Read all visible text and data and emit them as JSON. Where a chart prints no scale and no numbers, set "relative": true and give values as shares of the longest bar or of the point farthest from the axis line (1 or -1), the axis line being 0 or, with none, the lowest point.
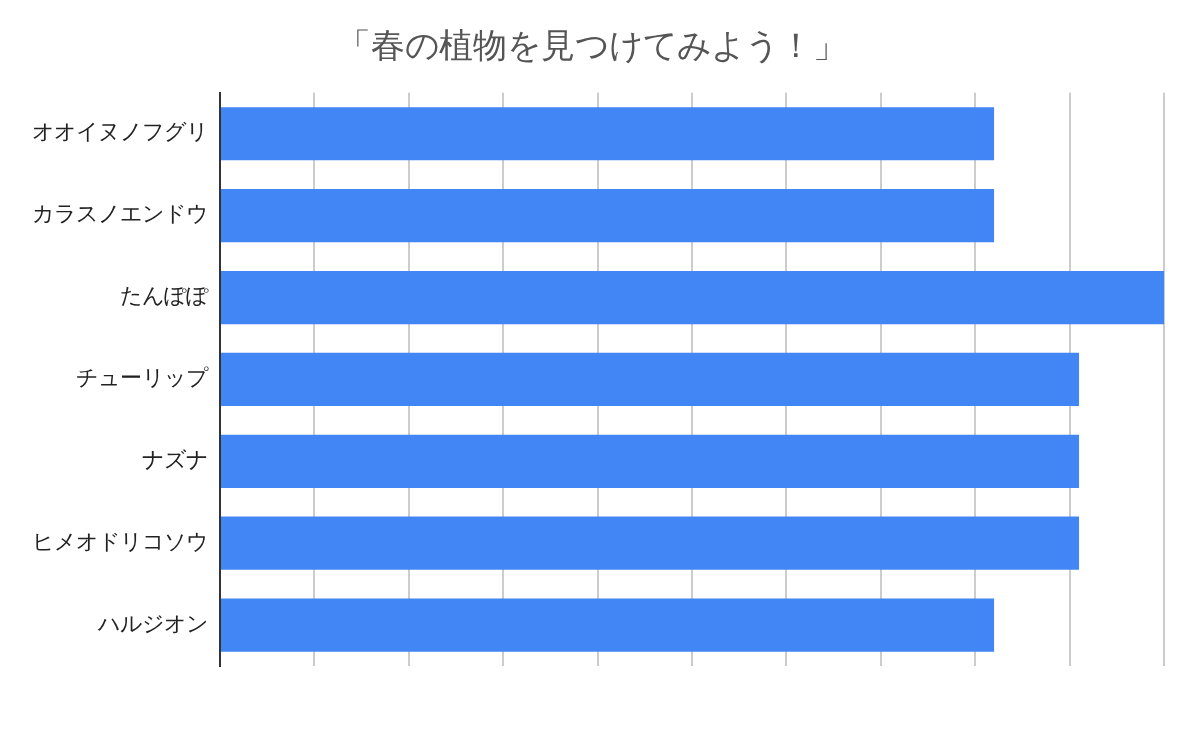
{
  "chart_data": {
    "type": "bar",
    "orientation": "horizontal",
    "relative": true,
    "title": "「春の植物を見つけてみよう！」",
    "categories": [
      "オオイヌノフグリ",
      "カラスノエンドウ",
      "たんぽぽ",
      "チューリップ",
      "ナズナ",
      "ヒメオドリコソウ",
      "ハルジオン"
    ],
    "values": [
      0.82,
      0.82,
      1,
      0.91,
      0.91,
      0.91,
      0.82
    ],
    "color": "#4285f4",
    "grid": "x",
    "legend": false
  }
}
